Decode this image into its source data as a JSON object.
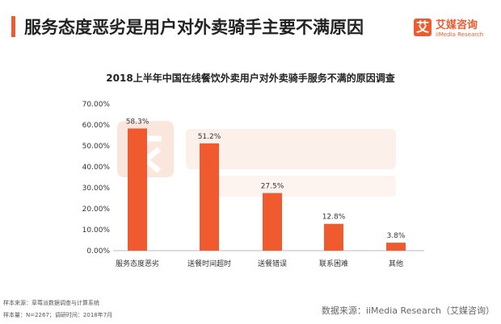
{
  "header": {
    "title": "服务态度恶劣是用户对外卖骑手主要不满原因",
    "logo_icon": "艾",
    "logo_cn": "艾媒咨询",
    "logo_en": "iiMedia Research"
  },
  "watermark": {
    "cn": "艾媒咨询",
    "en": "iiMedia Research"
  },
  "chart_data": {
    "type": "bar",
    "title": "2018上半年中国在线餐饮外卖用户对外卖骑手服务不满的原因调查",
    "categories": [
      "服务态度恶劣",
      "送餐时间超时",
      "送餐错误",
      "联系困难",
      "其他"
    ],
    "values": [
      58.3,
      51.2,
      27.5,
      12.8,
      3.8
    ],
    "data_labels": [
      "58.3%",
      "51.2%",
      "27.5%",
      "12.8%",
      "3.8%"
    ],
    "yticks": [
      "0.00%",
      "10.00%",
      "20.00%",
      "30.00%",
      "40.00%",
      "50.00%",
      "60.00%",
      "70.00%"
    ],
    "ylim": [
      0,
      70
    ],
    "grid": false,
    "bar_color": "#ef5a2f"
  },
  "footer": {
    "sample_source": "样本来源：草莓派数据调查与计算系统",
    "sample_size": "样本量：N=2267；调研时间：2018年7月",
    "data_source": "数据来源：iiMedia Research（艾媒咨询）"
  }
}
